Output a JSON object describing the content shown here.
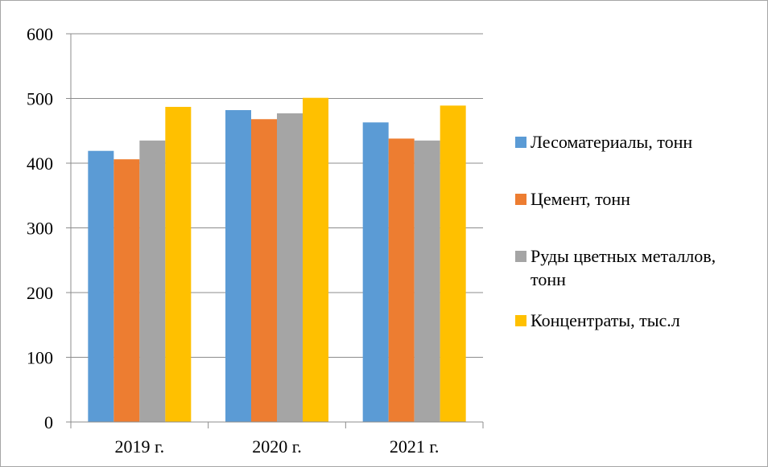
{
  "chart_data": {
    "type": "bar",
    "categories": [
      "2019 г.",
      "2020 г.",
      "2021 г."
    ],
    "series": [
      {
        "name": "Лесоматериалы, тонн",
        "color": "#5b9bd5",
        "values": [
          419,
          482,
          463
        ]
      },
      {
        "name": "Цемент, тонн",
        "color": "#ed7d31",
        "values": [
          406,
          468,
          438
        ]
      },
      {
        "name": "Руды цветных металлов, тонн",
        "color": "#a5a5a5",
        "values": [
          435,
          477,
          435
        ]
      },
      {
        "name": "Концентраты, тыс.л",
        "color": "#ffc000",
        "values": [
          487,
          501,
          489
        ]
      }
    ],
    "ylim": [
      0,
      600
    ],
    "yticks": [
      0,
      100,
      200,
      300,
      400,
      500,
      600
    ],
    "grid": true,
    "legend": "right",
    "title": "",
    "xlabel": "",
    "ylabel": ""
  }
}
